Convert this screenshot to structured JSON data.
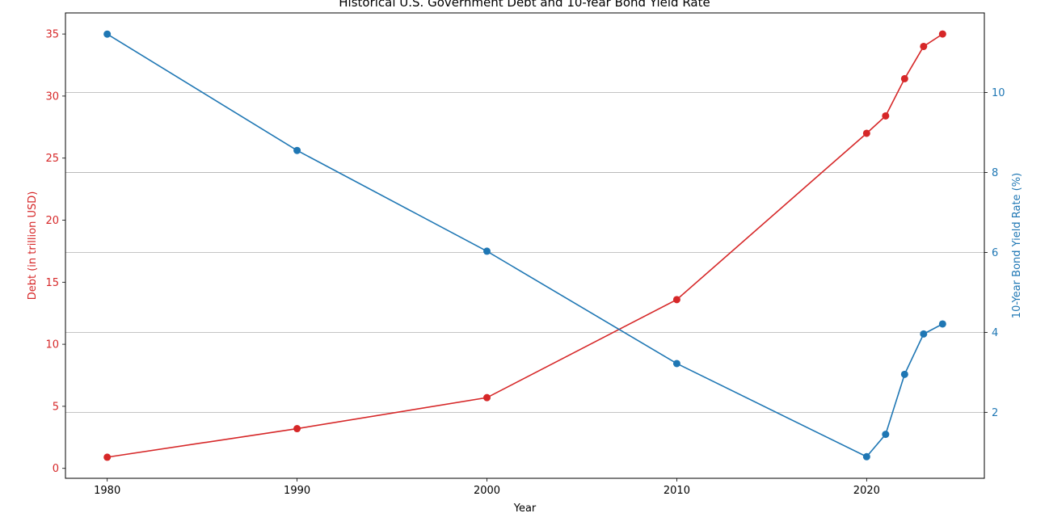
{
  "chart_data": {
    "type": "line",
    "title": "Historical U.S. Government Debt and 10-Year Bond Yield Rate",
    "xlabel": "Year",
    "ylabel_left": "Debt (in trillion USD)",
    "ylabel_right": "10-Year Bond Yield Rate (%)",
    "x": [
      1980,
      1990,
      2000,
      2010,
      2020,
      2021,
      2022,
      2023,
      2024
    ],
    "xlim": [
      1977.8,
      2026.2
    ],
    "xticks": [
      1980,
      1990,
      2000,
      2010,
      2020
    ],
    "ylim_left": [
      -0.8,
      36.7
    ],
    "yticks_left": [
      0,
      5,
      10,
      15,
      20,
      25,
      30,
      35
    ],
    "ylim_right": [
      0.35,
      11.99
    ],
    "yticks_right": [
      2,
      4,
      6,
      8,
      10
    ],
    "grid": "horizontal lines aligned with right axis ticks",
    "series": [
      {
        "axis": "left",
        "color": "#d62728",
        "values": [
          0.9,
          3.2,
          5.7,
          13.6,
          27.0,
          28.4,
          31.4,
          34.0,
          35.0
        ]
      },
      {
        "axis": "right",
        "color": "#1f77b4",
        "values": [
          11.46,
          8.55,
          6.03,
          3.22,
          0.89,
          1.45,
          2.95,
          3.96,
          4.21
        ]
      }
    ]
  }
}
